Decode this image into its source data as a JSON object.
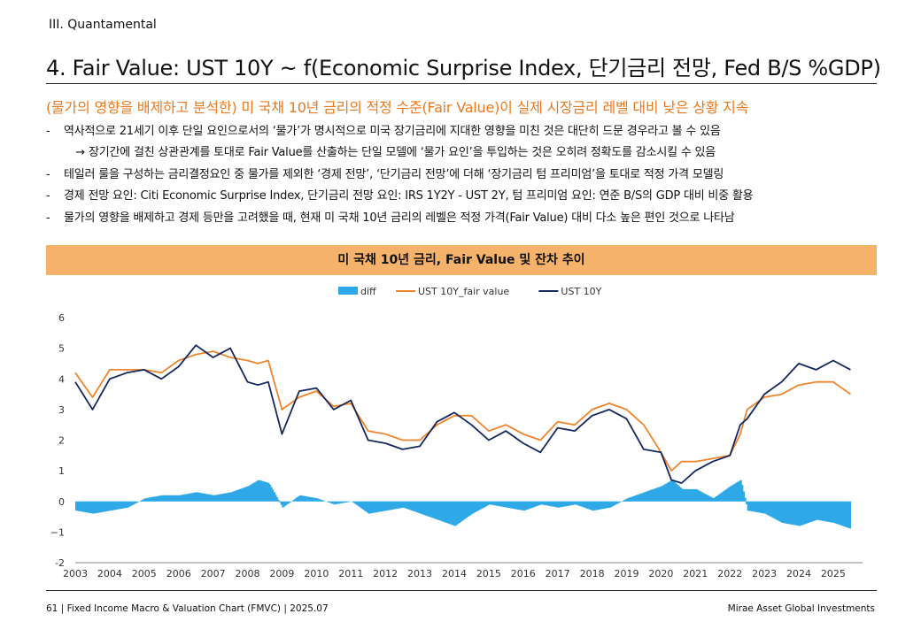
{
  "header": {
    "section": "III. Quantamental",
    "title": "4. Fair Value: UST 10Y ~ f(Economic Surprise Index, 단기금리 전망, Fed B/S %GDP)",
    "lead": "(물가의 영향을 배제하고 분석한) 미 국채 10년 금리의 적정 수준(Fair Value)이 실제 시장금리 레벨 대비 낮은 상황 지속"
  },
  "bullets": [
    {
      "marker": "-",
      "text": "역사적으로 21세기 이후 단일 요인으로서의 ‘물가’가 명시적으로 미국 장기금리에 지대한 영향을 미친 것은 대단히 드문 경우라고 볼 수 있음"
    },
    {
      "marker": "→",
      "text": "장기간에 걸친 상관관계를 토대로 Fair Value를 산출하는 단일 모델에 ‘물가 요인’을 투입하는 것은 오히려 정확도를 감소시킬 수 있음"
    },
    {
      "marker": "-",
      "text": "테일러 룰을 구성하는 금리결정요인 중 물가를 제외한 ‘경제 전망’, ‘단기금리 전망’에 더해 ‘장기금리 텀 프리미엄’을 토대로 적정 가격 모델링"
    },
    {
      "marker": "-",
      "text": "경제 전망 요인: Citi Economic Surprise Index, 단기금리 전망 요인: IRS 1Y2Y - UST 2Y, 텀 프리미엄 요인: 연준 B/S의 GDP 대비 비중 활용"
    },
    {
      "marker": "-",
      "text": "물가의 영향을 배제하고 경제 등만을 고려했을 때, 현재 미 국채 10년 금리의 레벨은 적정 가격(Fair Value) 대비 다소 높은 편인 것으로 나타남"
    }
  ],
  "chart_title": "미 국채 10년 금리, Fair Value 및 잔차 추이",
  "footer": {
    "left": "61 | Fixed Income Macro & Valuation Chart (FMVC) | 2025.07",
    "right": "Mirae Asset Global Investments"
  },
  "colors": {
    "diff": "#2ea8e6",
    "fair": "#f0852d",
    "ust": "#14275e",
    "accent": "#ea7a1f",
    "band": "#f4b26b"
  },
  "chart_data": {
    "type": "line",
    "ylim": [
      -2,
      6
    ],
    "yticks": [
      "-2",
      "−1",
      "0",
      "1",
      "2",
      "3",
      "4",
      "5",
      "6"
    ],
    "xticks": [
      "2003",
      "2004",
      "2005",
      "2006",
      "2007",
      "2008",
      "2009",
      "2010",
      "2011",
      "2012",
      "2013",
      "2014",
      "2015",
      "2016",
      "2017",
      "2018",
      "2019",
      "2020",
      "2021",
      "2022",
      "2023",
      "2024",
      "2025"
    ],
    "legend": "top-center",
    "series": [
      {
        "name": "diff",
        "kind": "area",
        "x": [
          2003.0,
          2003.5,
          2004.0,
          2004.5,
          2005.0,
          2005.5,
          2006.0,
          2006.5,
          2007.0,
          2007.5,
          2008.0,
          2008.3,
          2008.6,
          2009.0,
          2009.5,
          2010.0,
          2010.5,
          2011.0,
          2011.5,
          2012.0,
          2012.5,
          2013.0,
          2013.5,
          2014.0,
          2014.5,
          2015.0,
          2015.5,
          2016.0,
          2016.5,
          2017.0,
          2017.5,
          2018.0,
          2018.5,
          2019.0,
          2019.5,
          2020.0,
          2020.3,
          2020.6,
          2021.0,
          2021.5,
          2022.0,
          2022.3,
          2022.5,
          2023.0,
          2023.5,
          2024.0,
          2024.5,
          2025.0,
          2025.5
        ],
        "values": [
          -0.3,
          -0.4,
          -0.3,
          -0.2,
          0.1,
          0.2,
          0.2,
          0.3,
          0.2,
          0.3,
          0.5,
          0.7,
          0.6,
          -0.2,
          0.2,
          0.1,
          -0.1,
          0.0,
          -0.4,
          -0.3,
          -0.2,
          -0.4,
          -0.6,
          -0.8,
          -0.4,
          -0.1,
          -0.2,
          -0.3,
          -0.1,
          -0.2,
          -0.1,
          -0.3,
          -0.2,
          0.1,
          0.3,
          0.5,
          0.7,
          0.4,
          0.4,
          0.1,
          0.5,
          0.7,
          -0.3,
          -0.4,
          -0.7,
          -0.8,
          -0.6,
          -0.7,
          -0.9
        ]
      },
      {
        "name": "UST 10Y_fair value",
        "kind": "line",
        "x": [
          2003.0,
          2003.5,
          2004.0,
          2004.5,
          2005.0,
          2005.5,
          2006.0,
          2006.5,
          2007.0,
          2007.5,
          2008.0,
          2008.3,
          2008.6,
          2009.0,
          2009.5,
          2010.0,
          2010.5,
          2011.0,
          2011.5,
          2012.0,
          2012.5,
          2013.0,
          2013.5,
          2014.0,
          2014.5,
          2015.0,
          2015.5,
          2016.0,
          2016.5,
          2017.0,
          2017.5,
          2018.0,
          2018.5,
          2019.0,
          2019.5,
          2020.0,
          2020.3,
          2020.6,
          2021.0,
          2021.5,
          2022.0,
          2022.3,
          2022.5,
          2023.0,
          2023.5,
          2024.0,
          2024.5,
          2025.0,
          2025.5
        ],
        "values": [
          4.2,
          3.4,
          4.3,
          4.3,
          4.3,
          4.2,
          4.6,
          4.8,
          4.9,
          4.7,
          4.6,
          4.5,
          4.6,
          3.0,
          3.4,
          3.6,
          3.1,
          3.2,
          2.3,
          2.2,
          2.0,
          2.0,
          2.5,
          2.8,
          2.8,
          2.3,
          2.5,
          2.2,
          2.0,
          2.6,
          2.5,
          3.0,
          3.2,
          3.0,
          2.5,
          1.6,
          1.0,
          1.3,
          1.3,
          1.4,
          1.5,
          2.2,
          3.0,
          3.4,
          3.5,
          3.8,
          3.9,
          3.9,
          3.5
        ]
      },
      {
        "name": "UST 10Y",
        "kind": "line",
        "x": [
          2003.0,
          2003.5,
          2004.0,
          2004.5,
          2005.0,
          2005.5,
          2006.0,
          2006.5,
          2007.0,
          2007.5,
          2008.0,
          2008.3,
          2008.6,
          2009.0,
          2009.5,
          2010.0,
          2010.5,
          2011.0,
          2011.5,
          2012.0,
          2012.5,
          2013.0,
          2013.5,
          2014.0,
          2014.5,
          2015.0,
          2015.5,
          2016.0,
          2016.5,
          2017.0,
          2017.5,
          2018.0,
          2018.5,
          2019.0,
          2019.5,
          2020.0,
          2020.3,
          2020.6,
          2021.0,
          2021.5,
          2022.0,
          2022.3,
          2022.5,
          2023.0,
          2023.5,
          2024.0,
          2024.5,
          2025.0,
          2025.5
        ],
        "values": [
          3.9,
          3.0,
          4.0,
          4.2,
          4.3,
          4.0,
          4.4,
          5.1,
          4.7,
          5.0,
          3.9,
          3.8,
          3.9,
          2.2,
          3.6,
          3.7,
          3.0,
          3.3,
          2.0,
          1.9,
          1.7,
          1.8,
          2.6,
          2.9,
          2.5,
          2.0,
          2.3,
          1.9,
          1.6,
          2.4,
          2.3,
          2.8,
          3.0,
          2.7,
          1.7,
          1.6,
          0.7,
          0.6,
          1.0,
          1.3,
          1.5,
          2.5,
          2.7,
          3.5,
          3.9,
          4.5,
          4.3,
          4.6,
          4.3
        ]
      }
    ]
  }
}
